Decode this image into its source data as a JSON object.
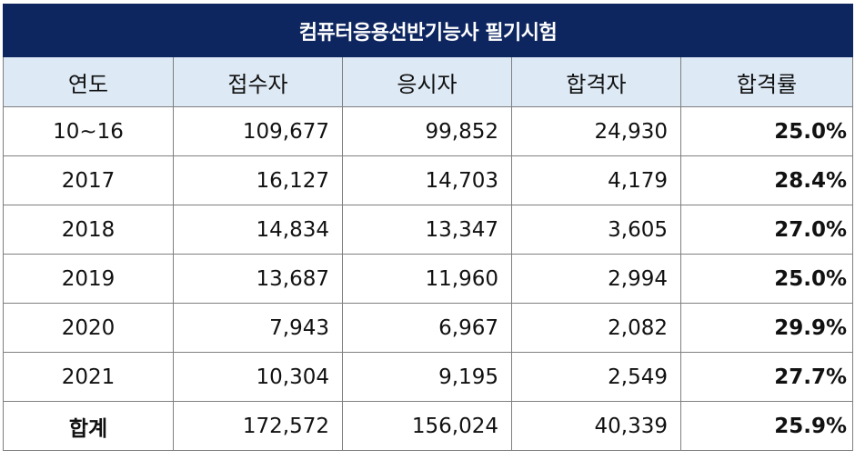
{
  "title": "컴퓨터응용선반기능사 필기시험",
  "headers": [
    "연도",
    "접수자",
    "응시자",
    "합격자",
    "합격률"
  ],
  "rows": [
    {
      "year": "10~16",
      "applicants": "109,677",
      "examinees": "99,852",
      "passers": "24,930",
      "pass_rate": "25.0%"
    },
    {
      "year": "2017",
      "applicants": "16,127",
      "examinees": "14,703",
      "passers": "4,179",
      "pass_rate": "28.4%"
    },
    {
      "year": "2018",
      "applicants": "14,834",
      "examinees": "13,347",
      "passers": "3,605",
      "pass_rate": "27.0%"
    },
    {
      "year": "2019",
      "applicants": "13,687",
      "examinees": "11,960",
      "passers": "2,994",
      "pass_rate": "25.0%"
    },
    {
      "year": "2020",
      "applicants": "7,943",
      "examinees": "6,967",
      "passers": "2,082",
      "pass_rate": "29.9%"
    },
    {
      "year": "2021",
      "applicants": "10,304",
      "examinees": "9,195",
      "passers": "2,549",
      "pass_rate": "27.7%"
    }
  ],
  "total": {
    "year": "합계",
    "applicants": "172,572",
    "examinees": "156,024",
    "passers": "40,339",
    "pass_rate": "25.9%"
  },
  "colors": {
    "title_bg": "#0e2660",
    "title_text": "#ffffff",
    "header_bg": "#dde9f5",
    "border": "#7f7f7f"
  }
}
